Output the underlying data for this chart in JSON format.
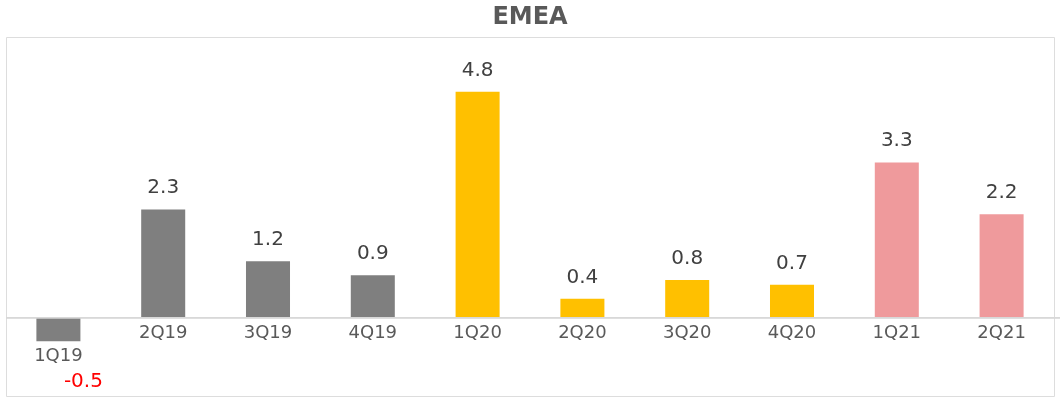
{
  "chart_data": {
    "type": "bar",
    "title": "EMEA",
    "categories": [
      "1Q19",
      "2Q19",
      "3Q19",
      "4Q19",
      "1Q20",
      "2Q20",
      "3Q20",
      "4Q20",
      "1Q21",
      "2Q21"
    ],
    "values": [
      -0.5,
      2.3,
      1.2,
      0.9,
      4.8,
      0.4,
      0.8,
      0.7,
      3.3,
      2.2
    ],
    "colors": [
      "#7f7f7f",
      "#7f7f7f",
      "#7f7f7f",
      "#7f7f7f",
      "#ffc000",
      "#ffc000",
      "#ffc000",
      "#ffc000",
      "#ef9a9c",
      "#ef9a9c"
    ],
    "data_labels": true
  }
}
